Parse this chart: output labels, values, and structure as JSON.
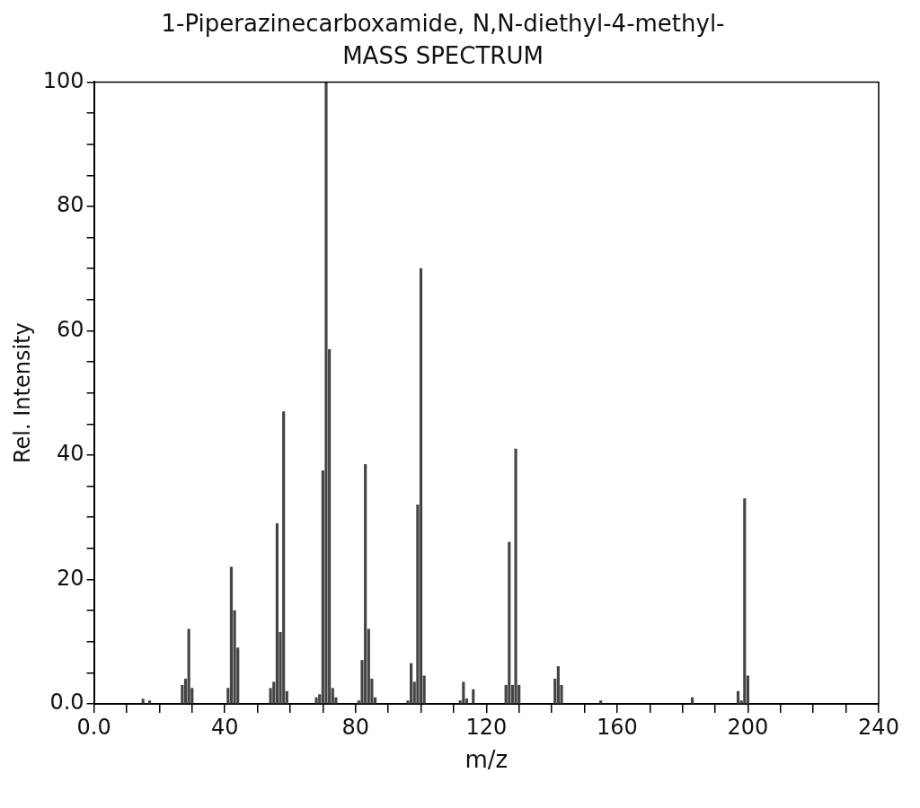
{
  "chart_data": {
    "type": "bar",
    "title": "1-Piperazinecarboxamide, N,N-diethyl-4-methyl-",
    "subtitle": "MASS SPECTRUM",
    "xlabel": "m/z",
    "ylabel": "Rel. Intensity",
    "x": [
      15,
      17,
      27,
      28,
      29,
      30,
      41,
      42,
      43,
      44,
      54,
      55,
      56,
      57,
      58,
      59,
      68,
      69,
      70,
      71,
      72,
      73,
      74,
      81,
      82,
      83,
      84,
      85,
      86,
      96,
      97,
      98,
      99,
      100,
      101,
      112,
      113,
      114,
      116,
      126,
      127,
      128,
      129,
      130,
      141,
      142,
      143,
      155,
      183,
      197,
      198,
      199,
      200
    ],
    "series": [
      {
        "color": "#444444",
        "values": [
          0.8,
          0.5,
          3,
          4,
          12,
          2.5,
          2.5,
          22,
          15,
          9,
          2.5,
          3.5,
          29,
          11.5,
          47,
          2,
          1,
          1.5,
          37.5,
          100,
          57,
          2.5,
          1,
          0.5,
          7,
          38.5,
          12,
          4,
          1,
          0.5,
          6.5,
          3.5,
          32,
          70,
          4.5,
          0.5,
          3.5,
          0.8,
          2.3,
          3,
          26,
          3,
          41,
          3,
          4,
          6,
          3,
          0.5,
          1,
          2,
          0.5,
          33,
          4.5
        ]
      }
    ],
    "xlim": [
      0,
      240
    ],
    "ylim": [
      0,
      100
    ],
    "xticks": [
      {
        "value": 0,
        "label": "0.0"
      },
      {
        "value": 10,
        "label": null
      },
      {
        "value": 20,
        "label": null
      },
      {
        "value": 30,
        "label": null
      },
      40,
      {
        "value": 50,
        "label": null
      },
      {
        "value": 60,
        "label": null
      },
      {
        "value": 70,
        "label": null
      },
      80,
      {
        "value": 90,
        "label": null
      },
      {
        "value": 100,
        "label": null
      },
      {
        "value": 110,
        "label": null
      },
      120,
      {
        "value": 130,
        "label": null
      },
      {
        "value": 140,
        "label": null
      },
      {
        "value": 150,
        "label": null
      },
      160,
      {
        "value": 170,
        "label": null
      },
      {
        "value": 180,
        "label": null
      },
      {
        "value": 190,
        "label": null
      },
      200,
      {
        "value": 210,
        "label": null
      },
      {
        "value": 220,
        "label": null
      },
      {
        "value": 230,
        "label": null
      },
      240
    ],
    "yticks": [
      {
        "value": 0,
        "label": "0.0"
      },
      {
        "value": 5,
        "label": null
      },
      {
        "value": 10,
        "label": null
      },
      {
        "value": 15,
        "label": null
      },
      20,
      {
        "value": 25,
        "label": null
      },
      {
        "value": 30,
        "label": null
      },
      {
        "value": 35,
        "label": null
      },
      40,
      {
        "value": 45,
        "label": null
      },
      {
        "value": 50,
        "label": null
      },
      {
        "value": 55,
        "label": null
      },
      60,
      {
        "value": 65,
        "label": null
      },
      {
        "value": 70,
        "label": null
      },
      {
        "value": 75,
        "label": null
      },
      80,
      {
        "value": 85,
        "label": null
      },
      {
        "value": 90,
        "label": null
      },
      {
        "value": 95,
        "label": null
      },
      100
    ],
    "grid": false,
    "legend": false
  }
}
